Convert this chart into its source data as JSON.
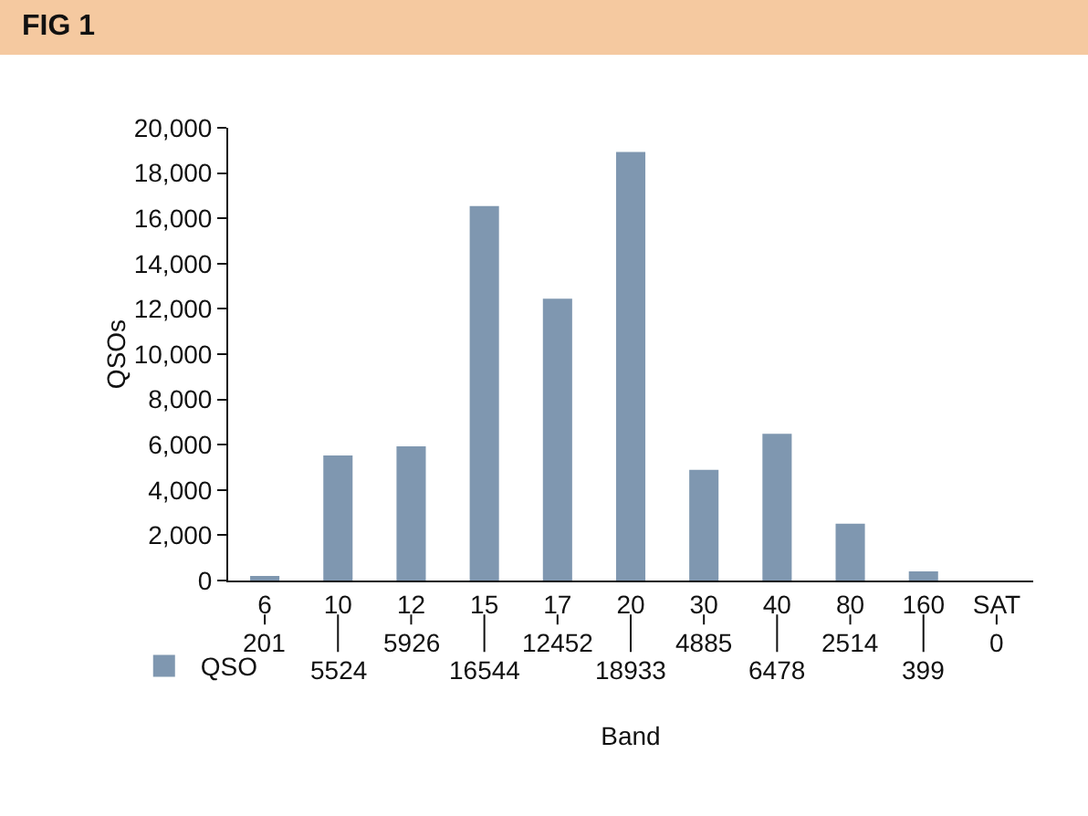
{
  "chart_data": {
    "type": "bar",
    "title": "FIG 1",
    "xlabel": "Band",
    "ylabel": "QSOs",
    "categories": [
      "6",
      "10",
      "12",
      "15",
      "17",
      "20",
      "30",
      "40",
      "80",
      "160",
      "SAT"
    ],
    "series": [
      {
        "name": "QSO",
        "color": "#7f97b0",
        "values": [
          201,
          5524,
          5926,
          16544,
          12452,
          18933,
          4885,
          6478,
          2514,
          399,
          0
        ]
      }
    ],
    "ylim": [
      0,
      20000
    ],
    "yticks": [
      0,
      {
        "value": 2000,
        "label": "2,000"
      },
      {
        "value": 4000,
        "label": "4,000"
      },
      {
        "value": 6000,
        "label": "6,000"
      },
      {
        "value": 8000,
        "label": "8,000"
      },
      {
        "value": 10000,
        "label": "10,000"
      },
      {
        "value": 12000,
        "label": "12,000"
      },
      {
        "value": 14000,
        "label": "14,000"
      },
      {
        "value": 16000,
        "label": "16,000"
      },
      {
        "value": 18000,
        "label": "18,000"
      },
      {
        "value": 20000,
        "label": "20,000"
      }
    ],
    "data_labels": true,
    "legend": "bottom left",
    "grid": false
  }
}
